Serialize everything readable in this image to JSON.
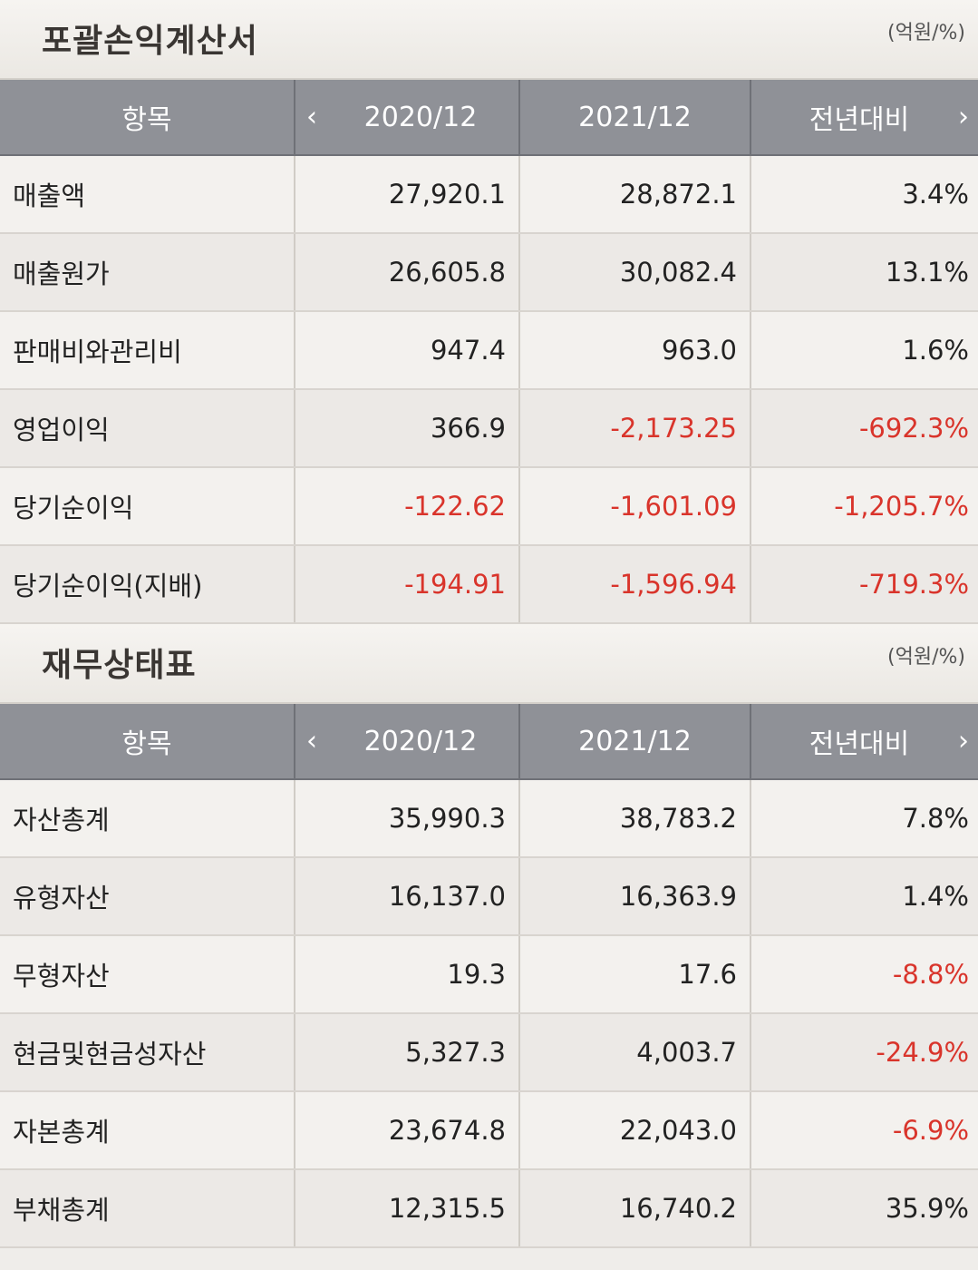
{
  "income": {
    "title": "포괄손익계산서",
    "unit": "(억원/%)",
    "headers": {
      "item": "항목",
      "prev": "2020/12",
      "curr": "2021/12",
      "yoy": "전년대비"
    },
    "rows": [
      {
        "label": "매출액",
        "prev": "27,920.1",
        "curr": "28,872.1",
        "yoy": "3.4%"
      },
      {
        "label": "매출원가",
        "prev": "26,605.8",
        "curr": "30,082.4",
        "yoy": "13.1%"
      },
      {
        "label": "판매비와관리비",
        "prev": "947.4",
        "curr": "963.0",
        "yoy": "1.6%"
      },
      {
        "label": "영업이익",
        "prev": "366.9",
        "curr": "-2,173.25",
        "yoy": "-692.3%"
      },
      {
        "label": "당기순이익",
        "prev": "-122.62",
        "curr": "-1,601.09",
        "yoy": "-1,205.7%"
      },
      {
        "label": "당기순이익(지배)",
        "prev": "-194.91",
        "curr": "-1,596.94",
        "yoy": "-719.3%"
      }
    ]
  },
  "balance": {
    "title": "재무상태표",
    "unit": "(억원/%)",
    "headers": {
      "item": "항목",
      "prev": "2020/12",
      "curr": "2021/12",
      "yoy": "전년대비"
    },
    "rows": [
      {
        "label": "자산총계",
        "prev": "35,990.3",
        "curr": "38,783.2",
        "yoy": "7.8%"
      },
      {
        "label": "유형자산",
        "prev": "16,137.0",
        "curr": "16,363.9",
        "yoy": "1.4%"
      },
      {
        "label": "무형자산",
        "prev": "19.3",
        "curr": "17.6",
        "yoy": "-8.8%"
      },
      {
        "label": "현금및현금성자산",
        "prev": "5,327.3",
        "curr": "4,003.7",
        "yoy": "-24.9%"
      },
      {
        "label": "자본총계",
        "prev": "23,674.8",
        "curr": "22,043.0",
        "yoy": "-6.9%"
      },
      {
        "label": "부채총계",
        "prev": "12,315.5",
        "curr": "16,740.2",
        "yoy": "35.9%"
      }
    ]
  },
  "icons": {
    "prev": "chevron-left-icon",
    "next": "chevron-right-icon"
  },
  "colors": {
    "negative": "#d9342b",
    "header_bg": "#8f9197"
  }
}
